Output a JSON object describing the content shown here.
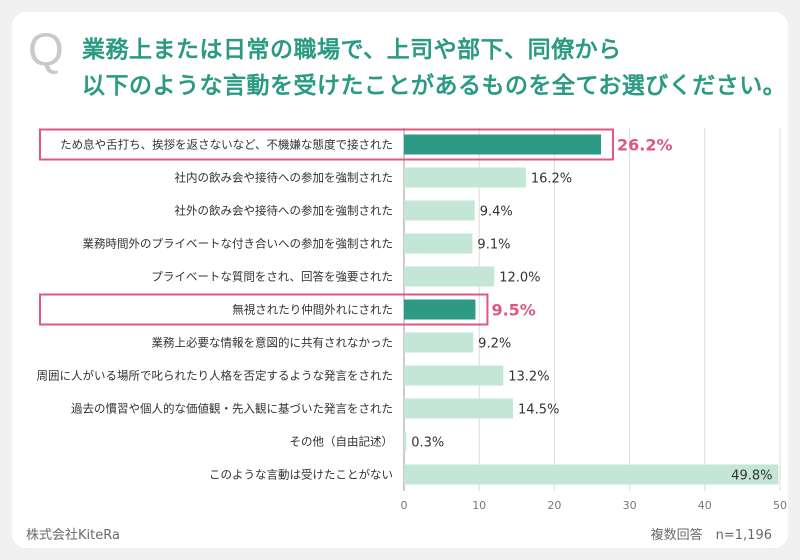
{
  "header": {
    "q_mark": "Q",
    "title_line1": "業務上または日常の職場で、上司や部下、同僚から",
    "title_line2": "以下のような言動を受けたことがあるものを全てお選びください。"
  },
  "footer": {
    "company": "株式会社KiteRa",
    "note": "複数回答　n=1,196"
  },
  "colors": {
    "highlight_bar": "#2e9a86",
    "normal_bar": "#c4e6d6",
    "highlight_box": "#e0587f",
    "highlight_text": "#e0587f",
    "title": "#2a9a82"
  },
  "chart_data": {
    "type": "bar",
    "orientation": "horizontal",
    "categories": [
      "ため息や舌打ち、挨拶を返さないなど、不機嫌な態度で接された",
      "社内の飲み会や接待への参加を強制された",
      "社外の飲み会や接待への参加を強制された",
      "業務時間外のプライベートな付き合いへの参加を強制された",
      "プライベートな質問をされ、回答を強要された",
      "無視されたり仲間外れにされた",
      "業務上必要な情報を意図的に共有されなかった",
      "周囲に人がいる場所で叱られたり人格を否定するような発言をされた",
      "過去の慣習や個人的な価値観・先入観に基づいた発言をされた",
      "その他（自由記述）",
      "このような言動は受けたことがない"
    ],
    "values": [
      26.2,
      16.2,
      9.4,
      9.1,
      12.0,
      9.5,
      9.2,
      13.2,
      14.5,
      0.3,
      49.8
    ],
    "value_labels": [
      "26.2%",
      "16.2%",
      "9.4%",
      "9.1%",
      "12.0%",
      "9.5%",
      "9.2%",
      "13.2%",
      "14.5%",
      "0.3%",
      "49.8%"
    ],
    "highlighted": [
      0,
      5
    ],
    "xlim": [
      0,
      50
    ],
    "xticks": [
      0,
      10,
      20,
      30,
      40,
      50
    ],
    "grid": true,
    "legend": "none"
  }
}
